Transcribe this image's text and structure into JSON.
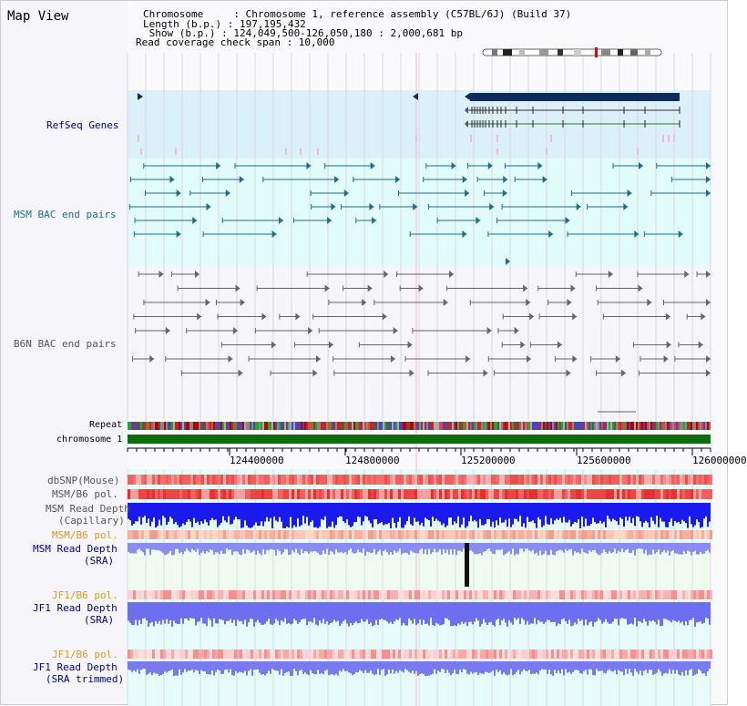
{
  "panel_title": "Map View",
  "header_lines": [
    "Chromosome     : Chromosome 1, reference assembly (C57BL/6J) (Build 37)",
    "Length (b.p.) : 197,195,432",
    " Show (b.p.) : 124,049,500-126,050,180 : 2,000,681 bp",
    "Read coverage check span : 10,000"
  ],
  "tracks": {
    "refseq": "RefSeq Genes",
    "msm_bac": "MSM BAC end pairs",
    "b6n_bac": "B6N BAC end pairs",
    "repeat": "Repeat",
    "chromosome": "chromosome 1",
    "dbsnp": "dbSNP(Mouse)",
    "msm_b6_pol_1": "MSM/B6 pol.",
    "msm_read_cap_1": "MSM Read Depth",
    "msm_read_cap_2": "(Capillary)",
    "msm_b6_pol_2": "MSM/B6 pol.",
    "msm_read_sra_1": "MSM Read Depth",
    "msm_read_sra_2": "(SRA)",
    "jf1_b6_pol_1": "JF1/B6 pol.",
    "jf1_read_sra_1": "JF1 Read Depth",
    "jf1_read_sra_2": "(SRA)",
    "jf1_b6_pol_2": "JF1/B6 pol.",
    "jf1_read_trim_1": "JF1 Read Depth",
    "jf1_read_trim_2": "(SRA trimmed)"
  },
  "axis_ticks": [
    "124400000",
    "124800000",
    "125200000",
    "125600000",
    "126000000"
  ],
  "colors": {
    "gene_blue": "#0d2b5b",
    "msm_teal": "#1d6e8c",
    "b6n_gray": "#666666",
    "label_blue": "#00008b",
    "label_orange": "#d99a1e",
    "chrom_green": "#0a6e0a"
  }
}
